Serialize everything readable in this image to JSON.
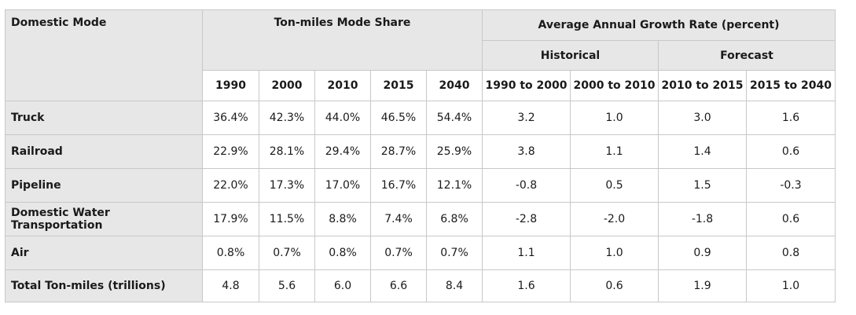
{
  "header": {
    "domestic_mode": "Domestic Mode",
    "mode_share": "Ton-miles Mode Share",
    "growth_rate": "Average Annual Growth Rate (percent)",
    "historical": "Historical",
    "forecast": "Forecast",
    "years": [
      "1990",
      "2000",
      "2010",
      "2015",
      "2040"
    ],
    "periods": [
      "1990 to 2000",
      "2000 to 2010",
      "2010 to 2015",
      "2015 to 2040"
    ]
  },
  "rows": [
    {
      "mode": "Truck",
      "cells": [
        "36.4%",
        "42.3%",
        "44.0%",
        "46.5%",
        "54.4%",
        "3.2",
        "1.0",
        "3.0",
        "1.6"
      ]
    },
    {
      "mode": "Railroad",
      "cells": [
        "22.9%",
        "28.1%",
        "29.4%",
        "28.7%",
        "25.9%",
        "3.8",
        "1.1",
        "1.4",
        "0.6"
      ]
    },
    {
      "mode": "Pipeline",
      "cells": [
        "22.0%",
        "17.3%",
        "17.0%",
        "16.7%",
        "12.1%",
        "-0.8",
        "0.5",
        "1.5",
        "-0.3"
      ]
    },
    {
      "mode": "Domestic Water Transportation",
      "cells": [
        "17.9%",
        "11.5%",
        "8.8%",
        "7.4%",
        "6.8%",
        "-2.8",
        "-2.0",
        "-1.8",
        "0.6"
      ]
    },
    {
      "mode": "Air",
      "cells": [
        "0.8%",
        "0.7%",
        "0.8%",
        "0.7%",
        "0.7%",
        "1.1",
        "1.0",
        "0.9",
        "0.8"
      ]
    },
    {
      "mode": "Total Ton-miles (trillions)",
      "cells": [
        "4.8",
        "5.6",
        "6.0",
        "6.6",
        "8.4",
        "1.6",
        "0.6",
        "1.9",
        "1.0"
      ]
    }
  ]
}
